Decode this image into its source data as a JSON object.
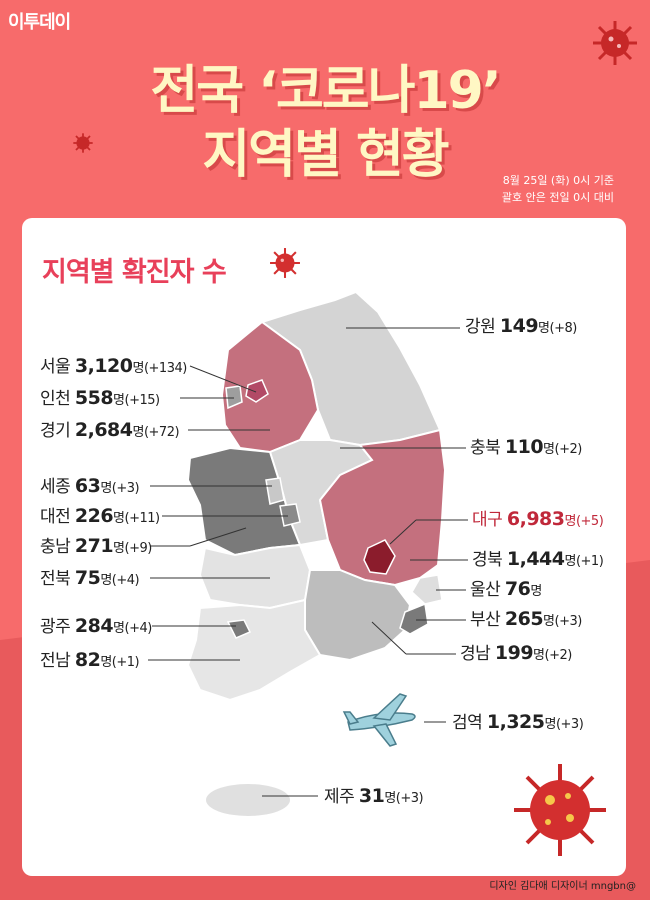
{
  "logo": "이투데이",
  "title_line1": "전국 ‘코로나19’",
  "title_line2": "지역별 현황",
  "basis_line1": "8월 25일 (화) 0시 기준",
  "basis_line2": "괄호 안은 전일 0시 대비",
  "section_title": "지역별 확진자 수",
  "unit": "명",
  "regions": {
    "gangwon": {
      "name": "강원",
      "count": "149",
      "change": "(+8)"
    },
    "seoul": {
      "name": "서울",
      "count": "3,120",
      "change": "(+134)"
    },
    "incheon": {
      "name": "인천",
      "count": "558",
      "change": "(+15)"
    },
    "gyeonggi": {
      "name": "경기",
      "count": "2,684",
      "change": "(+72)"
    },
    "chungbuk": {
      "name": "충북",
      "count": "110",
      "change": "(+2)"
    },
    "sejong": {
      "name": "세종",
      "count": "63",
      "change": "(+3)"
    },
    "daejeon": {
      "name": "대전",
      "count": "226",
      "change": "(+11)"
    },
    "daegu": {
      "name": "대구",
      "count": "6,983",
      "change": "(+5)"
    },
    "chungnam": {
      "name": "충남",
      "count": "271",
      "change": "(+9)"
    },
    "gyeongbuk": {
      "name": "경북",
      "count": "1,444",
      "change": "(+1)"
    },
    "jeonbuk": {
      "name": "전북",
      "count": "75",
      "change": "(+4)"
    },
    "ulsan": {
      "name": "울산",
      "count": "76",
      "change": ""
    },
    "busan": {
      "name": "부산",
      "count": "265",
      "change": "(+3)"
    },
    "gwangju": {
      "name": "광주",
      "count": "284",
      "change": "(+4)"
    },
    "gyeongnam": {
      "name": "경남",
      "count": "199",
      "change": "(+2)"
    },
    "jeonnam": {
      "name": "전남",
      "count": "82",
      "change": "(+1)"
    },
    "quarantine": {
      "name": "검역",
      "count": "1,325",
      "change": "(+3)"
    },
    "jeju": {
      "name": "제주",
      "count": "31",
      "change": "(+3)"
    }
  },
  "colors": {
    "background": "#f76b6b",
    "title": "#fff7c4",
    "accent": "#e8405a",
    "daegu_fill": "#8b1c2c",
    "high_fill": "#c4707e",
    "mid_fill": "#7a7a7a",
    "light_fill": "#cfcfcf",
    "lighter_fill": "#e3e3e3"
  },
  "icons": [
    "virus-icon",
    "airplane-icon"
  ],
  "credit": "디자인 김다애 디자이너 mngbn@"
}
